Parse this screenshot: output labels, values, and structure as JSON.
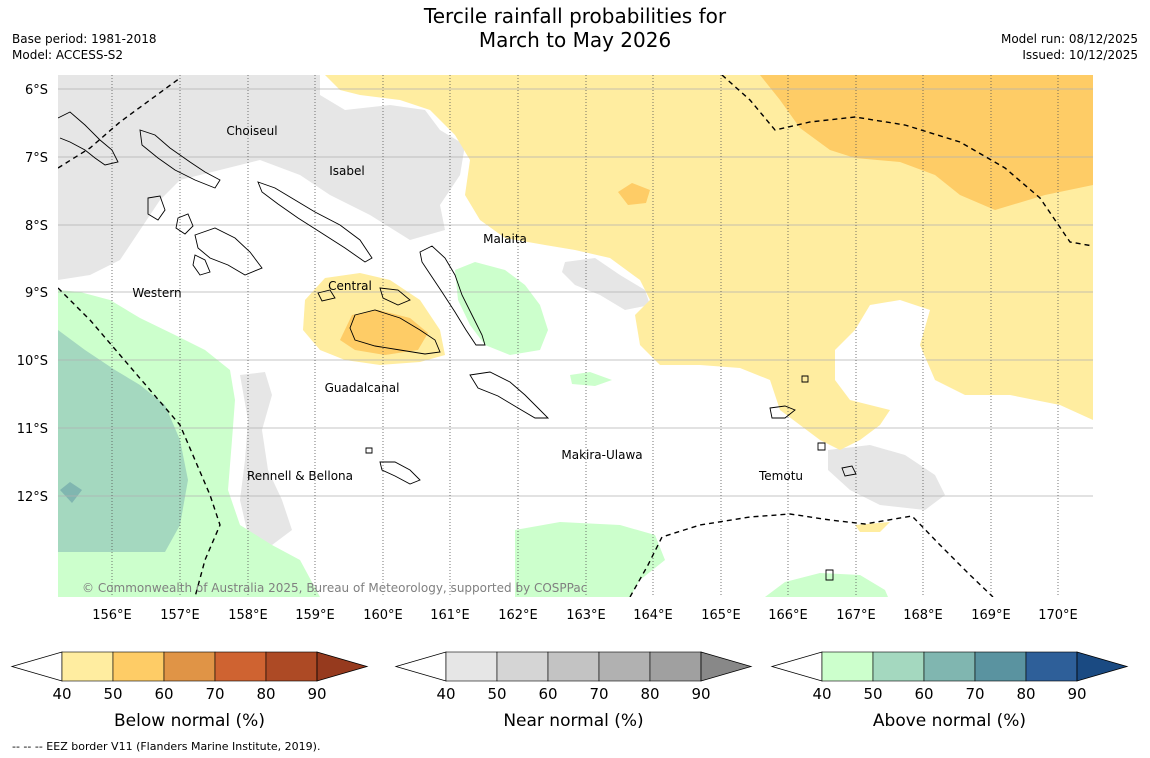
{
  "title_line1": "Tercile rainfall probabilities for",
  "title_line2": "March to May 2026",
  "base_period": "Base period: 1981-2018",
  "model": "Model: ACCESS-S2",
  "model_run": "Model run: 08/12/2025",
  "issued": "Issued: 10/12/2025",
  "copyright": "© Commonwealth of Australia 2025, Bureau of Meteorology, supported by COSPPac",
  "lat_labels": [
    "6°S",
    "7°S",
    "8°S",
    "9°S",
    "10°S",
    "11°S",
    "12°S"
  ],
  "lon_labels": [
    "156°E",
    "157°E",
    "158°E",
    "159°E",
    "160°E",
    "161°E",
    "162°E",
    "163°E",
    "164°E",
    "165°E",
    "166°E",
    "167°E",
    "168°E",
    "169°E",
    "170°E"
  ],
  "provinces": [
    "Choiseul",
    "Isabel",
    "Malaita",
    "Western",
    "Central",
    "Guadalcanal",
    "Makira-Ulawa",
    "Rennell & Bellona",
    "Temotu"
  ],
  "colorbars": [
    {
      "label": "Below normal (%)",
      "ticks": [
        "40",
        "50",
        "60",
        "70",
        "80",
        "90"
      ],
      "colors": [
        "#ffeda0",
        "#fecc66",
        "#e09446",
        "#cf6331",
        "#ad4a25"
      ],
      "end_color": "#963a1e"
    },
    {
      "label": "Near normal (%)",
      "ticks": [
        "40",
        "50",
        "60",
        "70",
        "80",
        "90"
      ],
      "colors": [
        "#e6e6e6",
        "#d5d5d5",
        "#c3c3c3",
        "#b1b1b1",
        "#a0a0a0"
      ],
      "end_color": "#888888"
    },
    {
      "label": "Above normal (%)",
      "ticks": [
        "40",
        "50",
        "60",
        "70",
        "80",
        "90"
      ],
      "colors": [
        "#ccffcc",
        "#a4d8bf",
        "#80b6b0",
        "#5a93a0",
        "#2e5f99"
      ],
      "end_color": "#1a4a82"
    }
  ],
  "eez_legend": "--  --  -- EEZ border V11 (Flanders Marine Institute, 2019).",
  "colors": {
    "below_40": "#ffeda0",
    "below_50": "#fecc66",
    "near_40": "#e6e6e6",
    "above_40": "#ccffcc",
    "above_50": "#a4d8bf"
  }
}
